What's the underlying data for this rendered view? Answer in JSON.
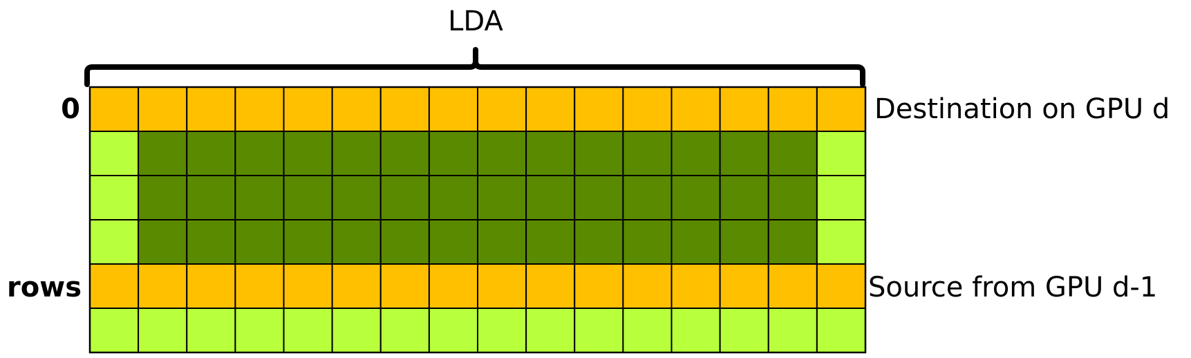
{
  "diagram": {
    "width_label": "LDA",
    "row_labels": {
      "top": "0",
      "bottom": "rows"
    },
    "side_labels": {
      "destination": "Destination on GPU d",
      "source": "Source from GPU d-1"
    },
    "grid": {
      "columns": 16,
      "rows": [
        {
          "role": "destination",
          "kind": "halo"
        },
        {
          "role": "interior",
          "kind": "data"
        },
        {
          "role": "interior",
          "kind": "data"
        },
        {
          "role": "interior",
          "kind": "data"
        },
        {
          "role": "source",
          "kind": "halo"
        },
        {
          "role": "padding",
          "kind": "light"
        }
      ]
    },
    "colors": {
      "orange": "#FFC000",
      "dark_green": "#5A8A00",
      "light_green": "#B8FF3C",
      "grid_line": "#000000"
    }
  }
}
